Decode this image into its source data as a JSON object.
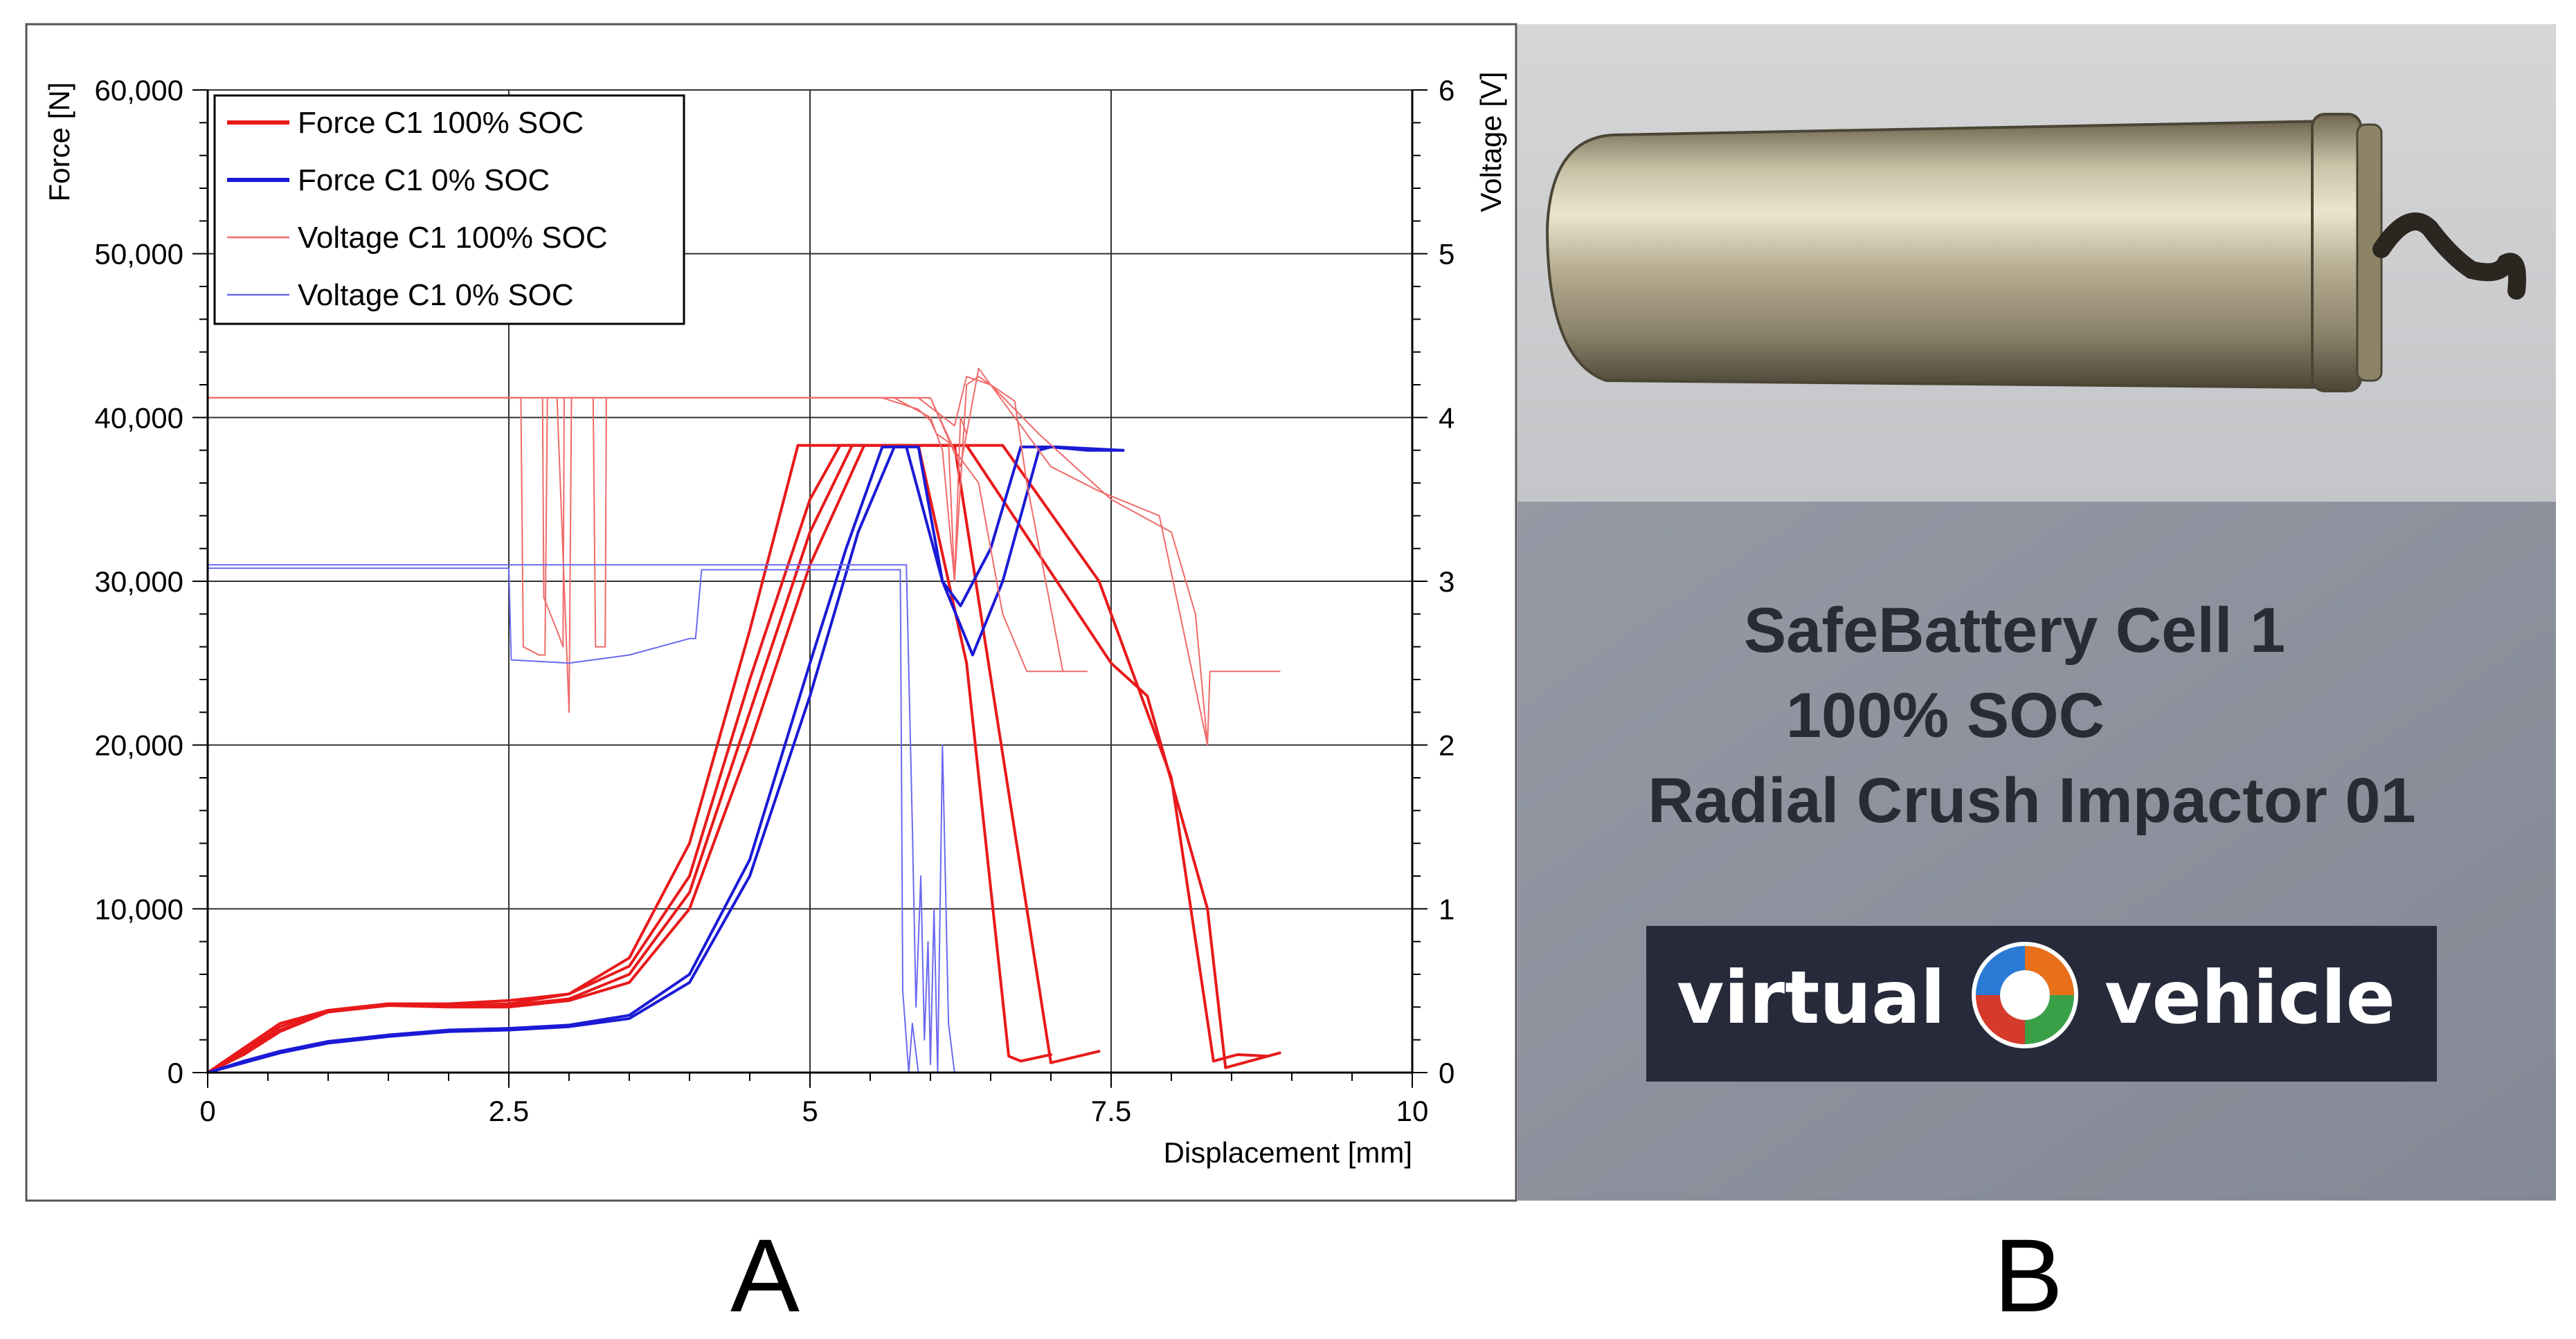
{
  "panels": {
    "a_label": "A",
    "b_label": "B"
  },
  "chart_data": {
    "type": "line",
    "xlabel": "Displacement [mm]",
    "ylabel": "Force [N]",
    "y2label": "Voltage [V]",
    "xlim": [
      0,
      10
    ],
    "ylim": [
      0,
      60000
    ],
    "y2lim": [
      0,
      6
    ],
    "xticks": [
      0,
      2.5,
      5,
      7.5,
      10
    ],
    "xtick_labels": [
      "0",
      "2.5",
      "5",
      "7.5",
      "10"
    ],
    "yticks": [
      0,
      10000,
      20000,
      30000,
      40000,
      50000,
      60000
    ],
    "ytick_labels": [
      "0",
      "10,000",
      "20,000",
      "30,000",
      "40,000",
      "50,000",
      "60,000"
    ],
    "y2ticks": [
      0,
      1,
      2,
      3,
      4,
      5,
      6
    ],
    "y2tick_labels": [
      "0",
      "1",
      "2",
      "3",
      "4",
      "5",
      "6"
    ],
    "grid": true,
    "legend_position": "top-left",
    "legend": [
      {
        "label": "Force C1 100% SOC",
        "color": "#e8191a",
        "style": "thick"
      },
      {
        "label": "Force C1 0% SOC",
        "color": "#1a1ad6",
        "style": "thick"
      },
      {
        "label": "Voltage C1 100% SOC",
        "color": "#f06a6a",
        "style": "thin"
      },
      {
        "label": "Voltage C1 0% SOC",
        "color": "#6a6af0",
        "style": "thin"
      }
    ],
    "series": [
      {
        "name": "Force C1 100% SOC",
        "axis": "left",
        "color": "#e8191a",
        "width": 4,
        "x": [
          0,
          0.3,
          0.6,
          1.0,
          1.5,
          2.0,
          2.5,
          3.0,
          3.5,
          4.0,
          4.5,
          4.9,
          5.4,
          5.9,
          6.3,
          6.65,
          6.75,
          7.0
        ],
        "y": [
          0,
          1500,
          3000,
          3800,
          4200,
          4100,
          4200,
          4800,
          7000,
          14000,
          27000,
          38300,
          38300,
          38300,
          25000,
          1000,
          700,
          1100
        ]
      },
      {
        "name": "Force C1 100% SOC",
        "axis": "left",
        "color": "#e8191a",
        "width": 4,
        "x": [
          0,
          0.3,
          0.6,
          1.0,
          1.5,
          2.0,
          2.5,
          3.0,
          3.5,
          4.0,
          4.5,
          5.0,
          5.25,
          6.2,
          6.8,
          7.0,
          7.4
        ],
        "y": [
          0,
          1300,
          2800,
          3800,
          4200,
          4200,
          4400,
          4800,
          6500,
          12000,
          24000,
          35000,
          38300,
          38300,
          10000,
          600,
          1300
        ]
      },
      {
        "name": "Force C1 100% SOC",
        "axis": "left",
        "color": "#e8191a",
        "width": 4,
        "x": [
          0,
          0.3,
          0.6,
          1.0,
          1.5,
          2.0,
          2.5,
          3.0,
          3.5,
          4.0,
          4.5,
          5.0,
          5.35,
          6.3,
          7.5,
          7.8,
          8.3,
          8.45,
          8.9
        ],
        "y": [
          0,
          1200,
          2600,
          3700,
          4100,
          4100,
          4100,
          4500,
          6000,
          11000,
          22000,
          33000,
          38300,
          38300,
          25000,
          23000,
          10000,
          300,
          1200
        ]
      },
      {
        "name": "Force C1 100% SOC",
        "axis": "left",
        "color": "#e8191a",
        "width": 4,
        "x": [
          0,
          0.3,
          0.6,
          1.0,
          1.5,
          2.0,
          2.5,
          3.0,
          3.5,
          4.0,
          4.5,
          5.0,
          5.45,
          6.6,
          7.4,
          8.0,
          8.35,
          8.55,
          8.8
        ],
        "y": [
          0,
          1100,
          2500,
          3700,
          4100,
          4000,
          4000,
          4400,
          5500,
          10000,
          20000,
          31000,
          38300,
          38300,
          30000,
          18000,
          700,
          1100,
          1000
        ]
      },
      {
        "name": "Force C1 0% SOC",
        "axis": "left",
        "color": "#1a1ad6",
        "width": 4,
        "x": [
          0,
          0.3,
          0.6,
          1.0,
          1.5,
          2.0,
          2.5,
          3.0,
          3.5,
          4.0,
          4.5,
          5.0,
          5.3,
          5.6,
          5.8,
          6.1,
          6.35,
          6.6,
          6.9,
          7.0,
          7.3,
          7.6
        ],
        "y": [
          0,
          700,
          1300,
          1900,
          2300,
          2600,
          2700,
          2900,
          3500,
          6000,
          13000,
          25000,
          32000,
          38200,
          38200,
          30000,
          25500,
          30000,
          38000,
          38200,
          38000,
          38000
        ]
      },
      {
        "name": "Force C1 0% SOC",
        "axis": "left",
        "color": "#1a1ad6",
        "width": 4,
        "x": [
          0,
          0.3,
          0.6,
          1.0,
          1.5,
          2.0,
          2.5,
          3.0,
          3.5,
          4.0,
          4.5,
          5.0,
          5.4,
          5.7,
          5.9,
          6.1,
          6.25,
          6.5,
          6.75,
          7.05,
          7.6
        ],
        "y": [
          0,
          600,
          1200,
          1800,
          2200,
          2500,
          2600,
          2800,
          3300,
          5500,
          12000,
          23000,
          33000,
          38200,
          38200,
          30000,
          28500,
          32000,
          38200,
          38200,
          38000
        ]
      },
      {
        "name": "Voltage C1 100% SOC",
        "axis": "right",
        "color": "#f06a6a",
        "width": 2,
        "x": [
          0,
          2.6,
          2.62,
          2.75,
          2.8,
          2.82,
          2.9,
          3.0,
          3.02,
          3.2,
          3.22,
          3.25,
          3.3,
          3.31,
          5.6,
          5.9,
          6.0,
          6.05,
          6.15,
          6.2,
          6.25,
          6.3
        ],
        "y": [
          4.12,
          4.12,
          2.6,
          2.55,
          2.55,
          4.12,
          4.12,
          2.2,
          4.12,
          4.12,
          2.6,
          2.6,
          2.6,
          4.12,
          4.12,
          4.05,
          3.98,
          3.9,
          3.85,
          3.0,
          4.0,
          3.9
        ]
      },
      {
        "name": "Voltage C1 100% SOC",
        "axis": "right",
        "color": "#f06a6a",
        "width": 2,
        "x": [
          0,
          2.78,
          2.79,
          2.9,
          2.95,
          2.96,
          5.7,
          6.0,
          6.1,
          6.2,
          6.3,
          6.4,
          6.7,
          6.8,
          7.1
        ],
        "y": [
          4.12,
          4.12,
          2.9,
          2.7,
          2.6,
          4.12,
          4.12,
          4.0,
          3.8,
          3.0,
          4.2,
          4.25,
          4.1,
          3.6,
          2.45
        ]
      },
      {
        "name": "Voltage C1 100% SOC",
        "axis": "right",
        "color": "#f06a6a",
        "width": 2,
        "x": [
          0,
          5.9,
          6.2,
          6.3,
          6.5,
          6.9,
          7.5,
          8.0,
          8.2,
          8.3,
          8.32,
          8.4,
          8.9
        ],
        "y": [
          4.12,
          4.12,
          3.95,
          4.25,
          4.2,
          3.9,
          3.5,
          3.3,
          2.8,
          2.0,
          2.45,
          2.45,
          2.45
        ]
      },
      {
        "name": "Voltage C1 100% SOC",
        "axis": "right",
        "color": "#f06a6a",
        "width": 2,
        "x": [
          0,
          6.0,
          6.25,
          6.4,
          6.6,
          7.0,
          7.4,
          7.9,
          8.3
        ],
        "y": [
          4.12,
          4.12,
          3.7,
          4.3,
          4.1,
          3.7,
          3.55,
          3.4,
          2.0
        ]
      },
      {
        "name": "Voltage C1 100% SOC",
        "axis": "right",
        "color": "#f06a6a",
        "width": 2,
        "x": [
          0,
          6.0,
          6.2,
          6.4,
          6.6,
          6.8,
          7.0,
          7.3
        ],
        "y": [
          4.12,
          4.12,
          3.8,
          3.6,
          2.8,
          2.45,
          2.45,
          2.45
        ]
      },
      {
        "name": "Voltage C1 0% SOC",
        "axis": "right",
        "color": "#6a6af0",
        "width": 2,
        "x": [
          0,
          2.5,
          2.52,
          3.0,
          3.5,
          4.0,
          4.05,
          4.1,
          4.5,
          5.0,
          5.75,
          5.77,
          5.8,
          5.82,
          5.85,
          5.9
        ],
        "y": [
          3.08,
          3.08,
          2.52,
          2.5,
          2.55,
          2.65,
          2.65,
          3.07,
          3.07,
          3.07,
          3.07,
          0.5,
          0.2,
          0.0,
          0.3,
          0.0
        ]
      },
      {
        "name": "Voltage C1 0% SOC",
        "axis": "right",
        "color": "#6a6af0",
        "width": 2,
        "x": [
          0,
          5.8,
          5.85,
          5.88,
          5.92,
          5.95,
          5.98,
          6.0,
          6.03,
          6.06,
          6.1,
          6.15,
          6.2
        ],
        "y": [
          3.1,
          3.1,
          1.5,
          0.4,
          1.2,
          0.2,
          0.8,
          0.05,
          1.0,
          0.0,
          2.0,
          0.3,
          0.0
        ]
      }
    ]
  },
  "photo": {
    "label_line1": "SafeBattery Cell 1",
    "label_line2": "100% SOC",
    "label_line3": "Radial Crush Impactor 01",
    "logo_word_left": "virtual",
    "logo_word_right": "vehicle",
    "logo_colors": [
      "#e8701a",
      "#2a7bd6",
      "#3aa048",
      "#d63a2a"
    ],
    "background_top": "#cfcfd1",
    "background_bottom": "#8e939e"
  }
}
